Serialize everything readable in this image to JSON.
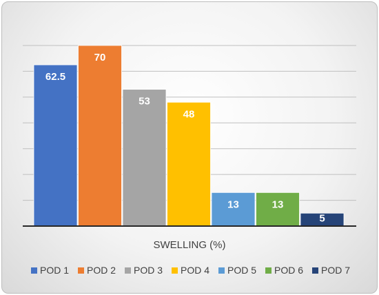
{
  "chart_data": {
    "type": "bar",
    "title": "",
    "xlabel": "SWELLING (%)",
    "ylabel": "",
    "ylim": [
      0,
      70
    ],
    "grid": true,
    "legend_position": "bottom",
    "data_labels": true,
    "series": [
      {
        "name": "POD 1",
        "value": 62.5,
        "label": "62.5",
        "color": "#4472C4"
      },
      {
        "name": "POD 2",
        "value": 70,
        "label": "70",
        "color": "#ED7D31"
      },
      {
        "name": "POD 3",
        "value": 53,
        "label": "53",
        "color": "#A5A5A5"
      },
      {
        "name": "POD 4",
        "value": 48,
        "label": "48",
        "color": "#FFC000"
      },
      {
        "name": "POD 5",
        "value": 13,
        "label": "13",
        "color": "#5B9BD5"
      },
      {
        "name": "POD 6",
        "value": 13,
        "label": "13",
        "color": "#70AD47"
      },
      {
        "name": "POD 7",
        "value": 5,
        "label": "5",
        "color": "#264478"
      }
    ]
  }
}
